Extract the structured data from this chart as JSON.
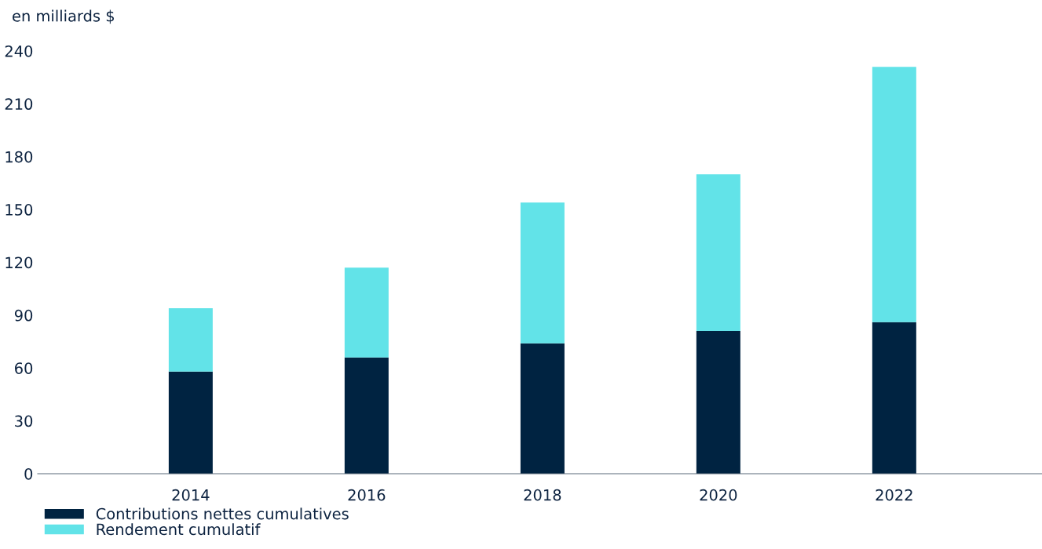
{
  "chart_data": {
    "type": "bar",
    "stacked": true,
    "ylabel": "en milliards $",
    "categories": [
      "2014",
      "2016",
      "2018",
      "2020",
      "2022"
    ],
    "series": [
      {
        "name": "Contributions nettes cumulatives",
        "color": "#002341",
        "values": [
          58,
          66,
          74,
          81,
          86
        ]
      },
      {
        "name": "Rendement cumulatif",
        "color": "#62e3e8",
        "values": [
          36,
          51,
          80,
          89,
          145
        ]
      }
    ],
    "ylim": [
      0,
      240
    ],
    "yticks": [
      0,
      30,
      60,
      90,
      120,
      150,
      180,
      210,
      240
    ],
    "grid": false,
    "legend": "bottom left"
  }
}
